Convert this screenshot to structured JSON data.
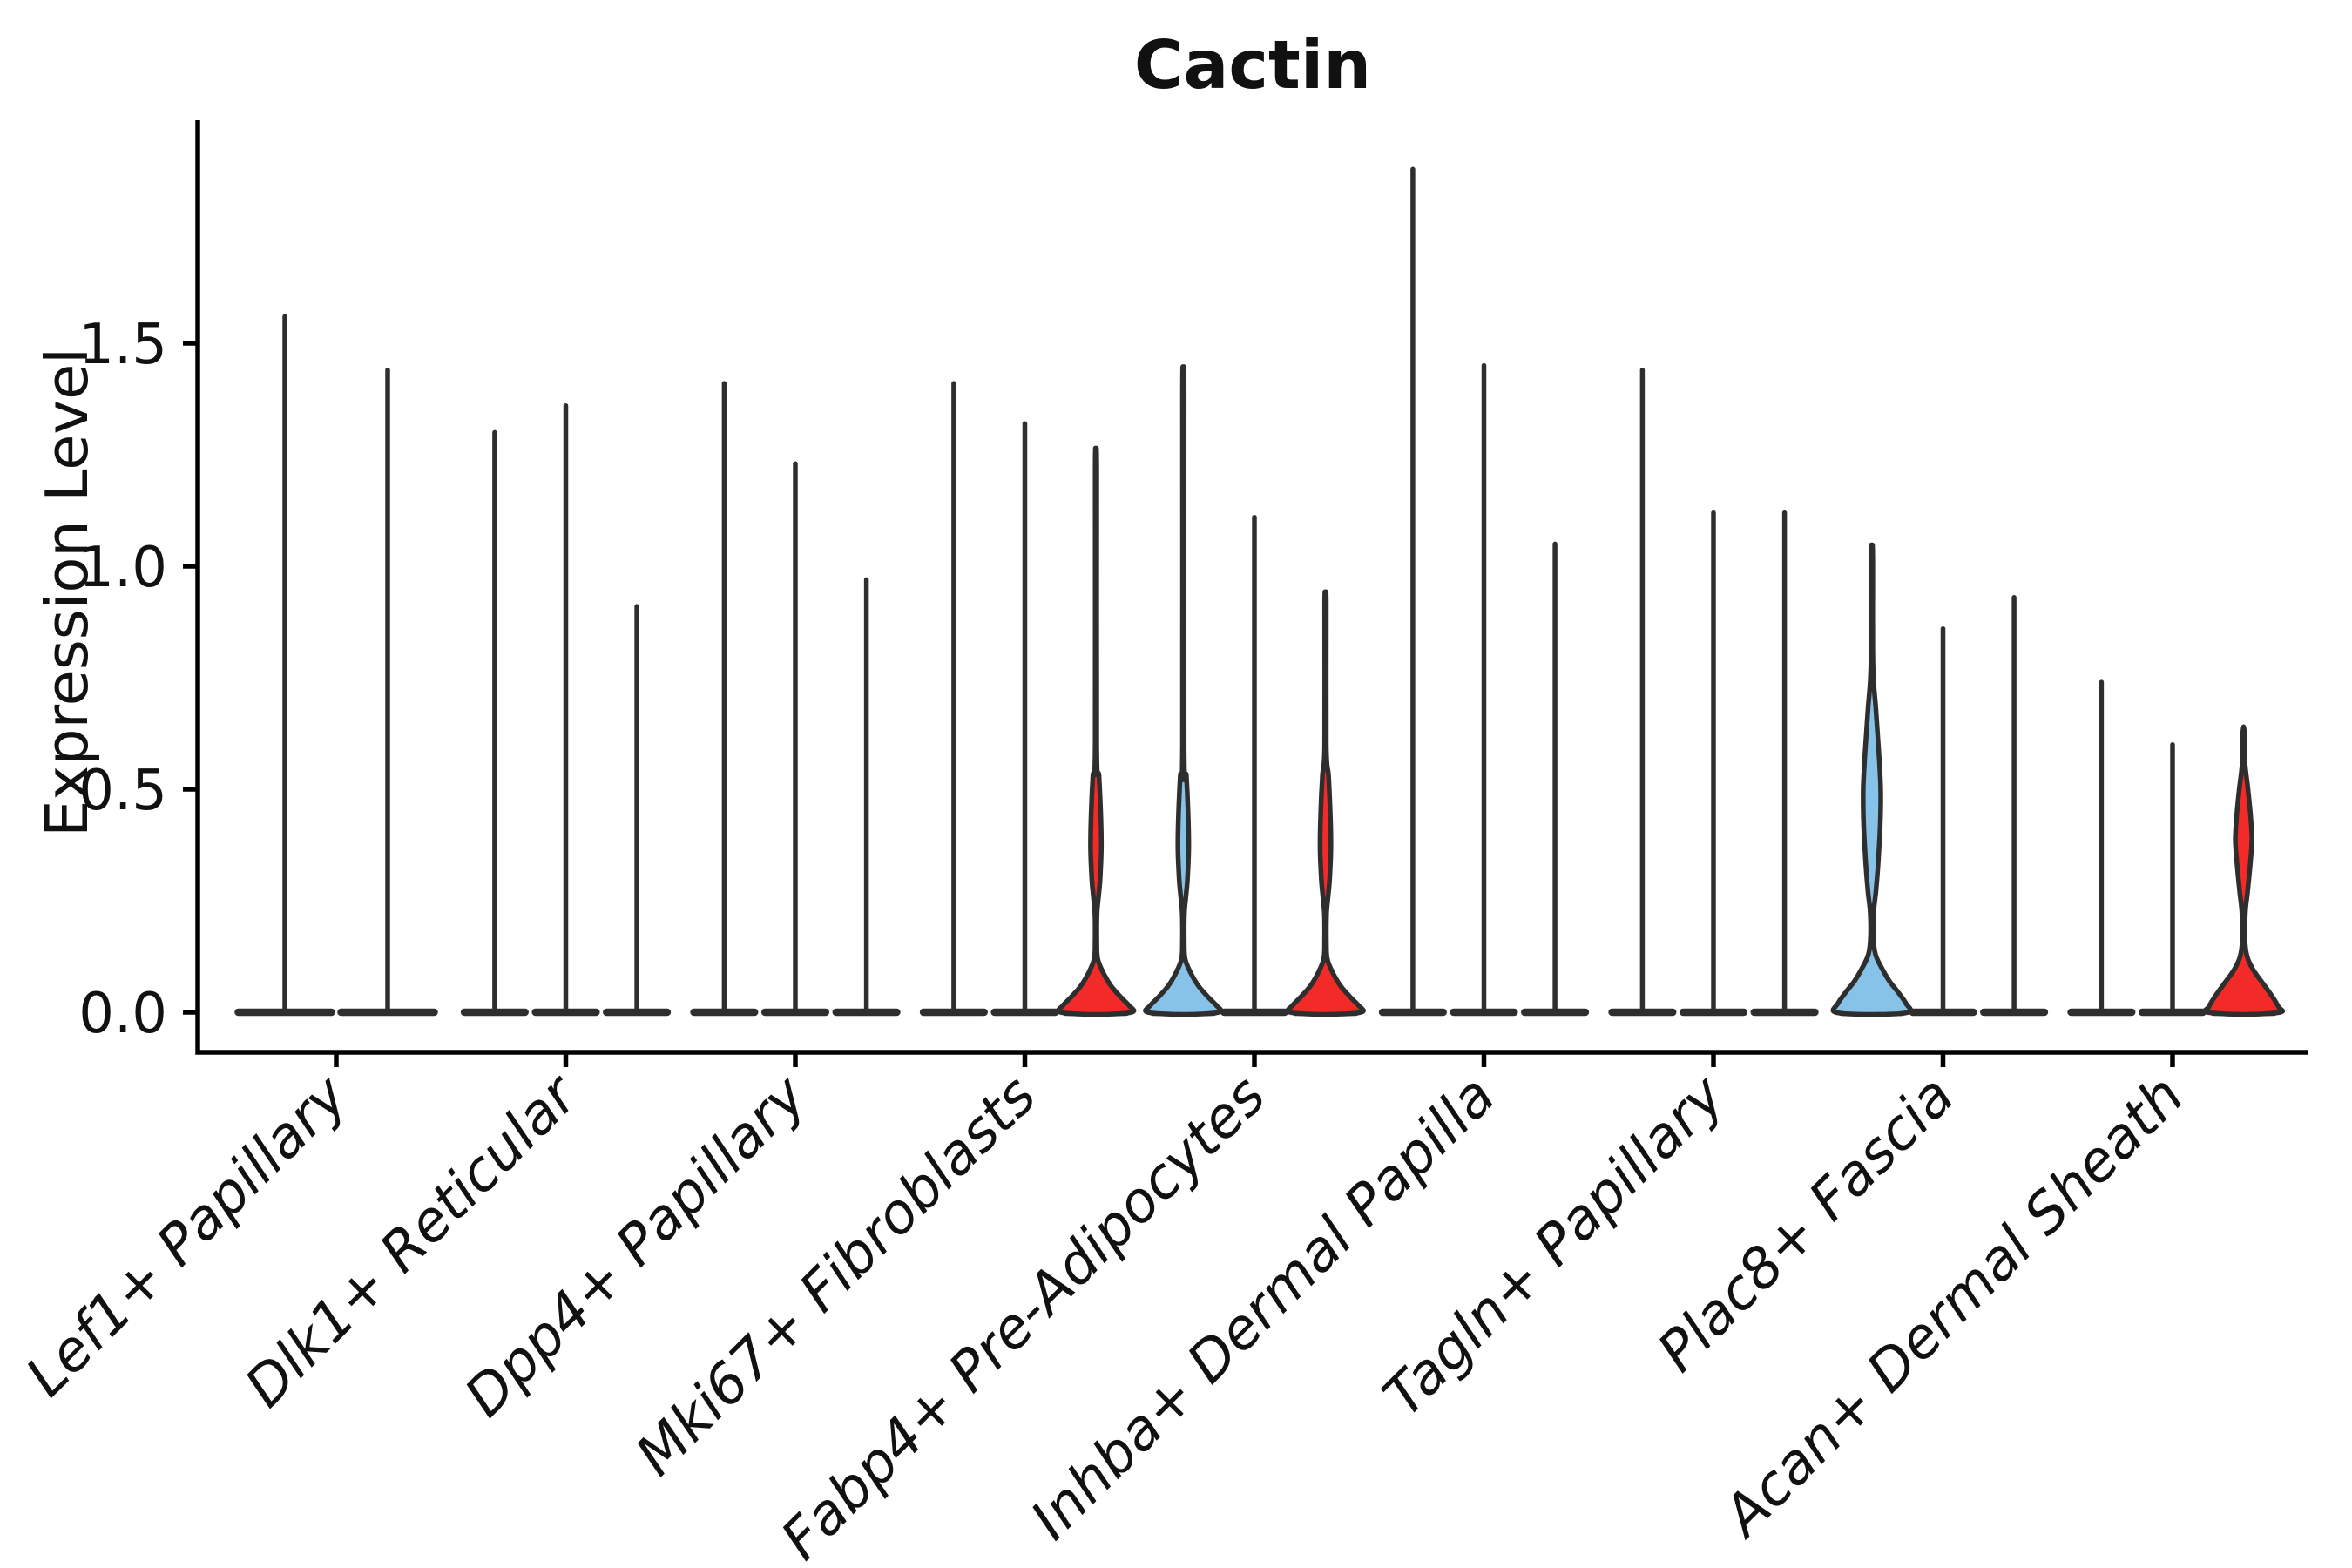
{
  "title": "Cactin",
  "y_axis": {
    "label": "Expression Level",
    "tick_labels": [
      "0.0",
      "0.5",
      "1.0",
      "1.5"
    ],
    "tick_values": [
      0.0,
      0.5,
      1.0,
      1.5
    ]
  },
  "colors": {
    "red": "#f22a28",
    "blue": "#87c3e8",
    "violin_stroke": "#2e2e2e",
    "axis": "#000000",
    "background": "#ffffff"
  },
  "chart_data": {
    "type": "violin",
    "title": "Cactin",
    "xlabel": "",
    "ylabel": "Expression Level",
    "ylim": [
      0,
      2.0
    ],
    "grid": false,
    "legend": "none",
    "categories": [
      "Lef1+ Papillary",
      "Dlk1+ Reticular",
      "Dpp4+ Papillary",
      "Mki67+ Fibroblasts",
      "Fabp4+ Pre-Adipocytes",
      "Inhba+ Dermal Papilla",
      "Tagln+ Papillary",
      "Plac8+ Fascia",
      "Acan+ Dermal Sheath"
    ],
    "groups": [
      {
        "label": "Lef1+ Papillary",
        "violins": [
          {
            "max": 1.56,
            "fill": null,
            "profile": null
          },
          {
            "max": 1.44,
            "fill": null,
            "profile": null
          }
        ]
      },
      {
        "label": "Dlk1+ Reticular",
        "violins": [
          {
            "max": 1.3,
            "fill": null,
            "profile": null
          },
          {
            "max": 1.36,
            "fill": null,
            "profile": null
          },
          {
            "max": 0.91,
            "fill": null,
            "profile": null
          }
        ]
      },
      {
        "label": "Dpp4+ Papillary",
        "violins": [
          {
            "max": 1.41,
            "fill": null,
            "profile": null
          },
          {
            "max": 1.23,
            "fill": null,
            "profile": null
          },
          {
            "max": 0.97,
            "fill": null,
            "profile": null
          }
        ]
      },
      {
        "label": "Mki67+ Fibroblasts",
        "violins": [
          {
            "max": 1.41,
            "fill": null,
            "profile": null
          },
          {
            "max": 1.32,
            "fill": null,
            "profile": null
          },
          {
            "max": 1.23,
            "fill": "red",
            "profile": "small"
          }
        ]
      },
      {
        "label": "Fabp4+ Pre-Adipocytes",
        "violins": [
          {
            "max": 1.4,
            "fill": "blue",
            "profile": "small"
          },
          {
            "max": 1.11,
            "fill": null,
            "profile": null
          },
          {
            "max": 0.93,
            "fill": "red",
            "profile": "small"
          }
        ]
      },
      {
        "label": "Inhba+ Dermal Papilla",
        "violins": [
          {
            "max": 1.89,
            "fill": null,
            "profile": null
          },
          {
            "max": 1.45,
            "fill": null,
            "profile": null
          },
          {
            "max": 1.05,
            "fill": null,
            "profile": null
          }
        ]
      },
      {
        "label": "Tagln+ Papillary",
        "violins": [
          {
            "max": 1.44,
            "fill": null,
            "profile": null
          },
          {
            "max": 1.12,
            "fill": null,
            "profile": null
          },
          {
            "max": 1.12,
            "fill": null,
            "profile": null
          }
        ]
      },
      {
        "label": "Plac8+ Fascia",
        "violins": [
          {
            "max": 1.04,
            "fill": "blue",
            "profile": "large_blue"
          },
          {
            "max": 0.86,
            "fill": null,
            "profile": null
          },
          {
            "max": 0.93,
            "fill": null,
            "profile": null
          }
        ]
      },
      {
        "label": "Acan+ Dermal Sheath",
        "violins": [
          {
            "max": 0.74,
            "fill": null,
            "profile": null
          },
          {
            "max": 0.6,
            "fill": null,
            "profile": null
          },
          {
            "max": 0.64,
            "fill": "red",
            "profile": "large_red"
          }
        ]
      }
    ],
    "profiles": {
      "small": [
        [
          0.6,
          0.9
        ],
        [
          0.53,
          3.5
        ],
        [
          0.45,
          5.4
        ],
        [
          0.37,
          6.2
        ],
        [
          0.3,
          4.8
        ],
        [
          0.26,
          3.0
        ],
        [
          0.22,
          1.2
        ],
        [
          0.16,
          1.0
        ],
        [
          0.12,
          2.0
        ],
        [
          0.09,
          8.0
        ],
        [
          0.06,
          17.0
        ],
        [
          0.035,
          28.0
        ],
        [
          0.015,
          38.0
        ],
        [
          0.0,
          41.0
        ]
      ],
      "large_blue": [
        [
          0.78,
          1.2
        ],
        [
          0.68,
          4.5
        ],
        [
          0.58,
          8.0
        ],
        [
          0.5,
          10.0
        ],
        [
          0.42,
          9.5
        ],
        [
          0.33,
          7.0
        ],
        [
          0.27,
          4.5
        ],
        [
          0.225,
          2.0
        ],
        [
          0.17,
          1.6
        ],
        [
          0.13,
          4.0
        ],
        [
          0.1,
          11.0
        ],
        [
          0.07,
          20.0
        ],
        [
          0.045,
          30.0
        ],
        [
          0.02,
          39.0
        ],
        [
          0.0,
          42.0
        ]
      ],
      "large_red": [
        [
          0.56,
          1.5
        ],
        [
          0.5,
          5.0
        ],
        [
          0.44,
          8.0
        ],
        [
          0.385,
          9.5
        ],
        [
          0.33,
          7.5
        ],
        [
          0.27,
          4.5
        ],
        [
          0.225,
          2.0
        ],
        [
          0.165,
          1.4
        ],
        [
          0.125,
          4.0
        ],
        [
          0.095,
          11.0
        ],
        [
          0.065,
          22.0
        ],
        [
          0.035,
          33.0
        ],
        [
          0.012,
          40.0
        ],
        [
          0.0,
          42.0
        ]
      ]
    }
  }
}
